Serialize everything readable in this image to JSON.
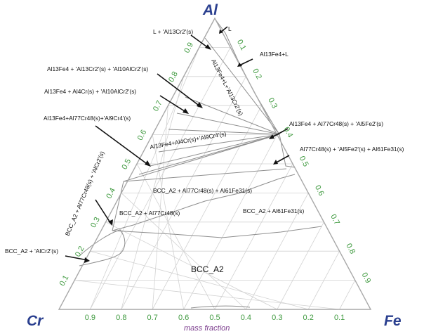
{
  "corners": {
    "top": "Al",
    "left": "Cr",
    "right": "Fe"
  },
  "axis_title": "mass fraction",
  "bottom_ticks": [
    "0.9",
    "0.8",
    "0.7",
    "0.6",
    "0.5",
    "0.4",
    "0.3",
    "0.2",
    "0.1"
  ],
  "left_ticks": [
    "0.1",
    "0.2",
    "0.3",
    "0.4",
    "0.5",
    "0.6",
    "0.7",
    "0.8",
    "0.9"
  ],
  "right_ticks": [
    "0.1",
    "0.2",
    "0.3",
    "0.4",
    "0.5",
    "0.6",
    "0.7",
    "0.8",
    "0.9"
  ],
  "regions": {
    "L": "L",
    "L_Al13Cr2": "L + 'Al13Cr2'(s)",
    "Al13Fe4_L": "Al13Fe4+L",
    "Al13Fe4_L_Al13Cr2": "Al13Fe4+L+'Al13Cr2'(s)",
    "Al13Fe4_Al13Cr2_Al10AlCr2": "Al13Fe4 + 'Al13Cr2'(s) + 'Al10AlCr2'(s)",
    "Al13Fe4_Al4Cr_Al10AlCr2": "Al13Fe4 + Al4Cr(s) + 'Al10AlCr2'(s)",
    "Al13Fe4_Al77Cr48_Al9Cr4": "Al13Fe4+Al77Cr48(s)+'Al9Cr4'(s)",
    "Al13Fe4_Al4Cr_Al9Cr4": "Al13Fe4+Al4Cr(s)+'Al9Cr4'(s)",
    "Al13Fe4_Al77Cr48_Al5Fe2": "Al13Fe4 + Al77Cr48(s) + 'Al5Fe2'(s)",
    "Al77Cr48_Al5Fe2_Al61Fe31": "Al77Cr48(s) + 'Al5Fe2'(s) + Al61Fe31(s)",
    "BCC_Al77Cr48_AlCr2": "BCC_A2 + Al77Cr48(s) + 'AlCr2'(s)",
    "BCC_Al77Cr48_Al61Fe31": "BCC_A2 + Al77Cr48(s) + Al61Fe31(s)",
    "BCC_Al77Cr48": "BCC_A2 + Al77Cr48(s)",
    "BCC_Al61Fe31": "BCC_A2 + Al61Fe31(s)",
    "BCC_AlCr2": "BCC_A2 + 'AlCr2'(s)",
    "BCC": "BCC_A2"
  }
}
